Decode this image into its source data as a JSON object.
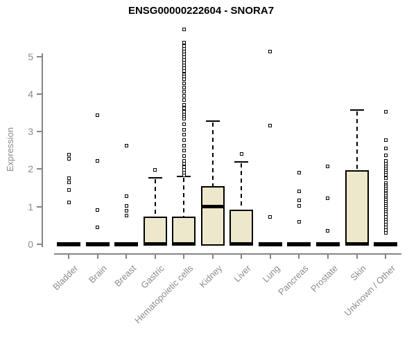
{
  "chart_data": {
    "type": "boxplot",
    "title": "ENSG00000222604 - SNORA7",
    "ylabel": "Expression",
    "xlabel": "",
    "ylim": [
      0,
      5.8
    ],
    "yticks": [
      0,
      1,
      2,
      3,
      4,
      5
    ],
    "grid": false,
    "legend": "none",
    "colors": {
      "box_fill": "#EDE8CB",
      "box_stroke": "#000000",
      "axis": "#848484",
      "tick_label": "#8C8C8C",
      "title": "#000000",
      "background": "#FFFFFF"
    },
    "categories": [
      "Bladder",
      "Brain",
      "Breast",
      "Gastric",
      "Hematopoietic cells",
      "Kidney",
      "Liver",
      "Lung",
      "Pancreas",
      "Prostate",
      "Skin",
      "Unknown / Other"
    ],
    "series": [
      {
        "category": "Bladder",
        "q1": 0,
        "median": 0,
        "q3": 0,
        "whisker_low": 0,
        "whisker_high": 0,
        "outliers": [
          2.38,
          2.28,
          1.76,
          1.65,
          1.45,
          1.12
        ]
      },
      {
        "category": "Brain",
        "q1": 0,
        "median": 0,
        "q3": 0,
        "whisker_low": 0,
        "whisker_high": 0,
        "outliers": [
          3.43,
          2.22,
          0.91,
          0.45
        ]
      },
      {
        "category": "Breast",
        "q1": 0,
        "median": 0,
        "q3": 0,
        "whisker_low": 0,
        "whisker_high": 0,
        "outliers": [
          2.62,
          1.28,
          1.03,
          0.89,
          0.76
        ]
      },
      {
        "category": "Gastric",
        "q1": 0,
        "median": 0,
        "q3": 0.73,
        "whisker_low": 0,
        "whisker_high": 1.76,
        "outliers": [
          1.98
        ]
      },
      {
        "category": "Hematopoietic cells",
        "q1": 0,
        "median": 0,
        "q3": 0.73,
        "whisker_low": 0,
        "whisker_high": 1.81,
        "outliers": [
          5.71,
          5.36,
          5.28,
          5.21,
          5.13,
          5.06,
          4.98,
          4.91,
          4.83,
          4.76,
          4.68,
          4.61,
          4.53,
          4.46,
          4.39,
          4.28,
          4.17,
          4.06,
          3.95,
          3.84,
          3.72,
          3.61,
          3.52,
          3.46,
          3.4,
          3.34,
          3.19,
          3.05,
          2.91,
          2.77,
          2.63,
          2.49,
          2.35,
          2.21,
          2.14,
          2.06,
          1.98,
          1.91,
          1.84
        ]
      },
      {
        "category": "Kidney",
        "q1": 0,
        "median": 1.0,
        "q3": 1.55,
        "whisker_low": 0,
        "whisker_high": 3.27,
        "outliers": []
      },
      {
        "category": "Liver",
        "q1": 0,
        "median": 0,
        "q3": 0.93,
        "whisker_low": 0,
        "whisker_high": 2.2,
        "outliers": [
          2.4
        ]
      },
      {
        "category": "Lung",
        "q1": 0,
        "median": 0,
        "q3": 0,
        "whisker_low": 0,
        "whisker_high": 0,
        "outliers": [
          5.12,
          3.15,
          0.72
        ]
      },
      {
        "category": "Pancreas",
        "q1": 0,
        "median": 0,
        "q3": 0,
        "whisker_low": 0,
        "whisker_high": 0,
        "outliers": [
          1.9,
          1.4,
          1.17,
          1.02,
          0.59
        ]
      },
      {
        "category": "Prostate",
        "q1": 0,
        "median": 0,
        "q3": 0,
        "whisker_low": 0,
        "whisker_high": 0,
        "outliers": [
          2.07,
          1.22,
          0.36
        ]
      },
      {
        "category": "Skin",
        "q1": 0,
        "median": 0,
        "q3": 1.97,
        "whisker_low": 0,
        "whisker_high": 3.58,
        "outliers": []
      },
      {
        "category": "Unknown / Other",
        "q1": 0,
        "median": 0,
        "q3": 0,
        "whisker_low": 0,
        "whisker_high": 0,
        "outliers": [
          3.52,
          2.77,
          2.55,
          2.36,
          2.22,
          2.14,
          2.08,
          2.02,
          1.96,
          1.9,
          1.85,
          1.76,
          1.63,
          1.58,
          1.53,
          1.48,
          1.43,
          1.38,
          1.33,
          1.28,
          1.23,
          1.18,
          1.13,
          1.08,
          1.02,
          0.97,
          0.91,
          0.86,
          0.8,
          0.73,
          0.66,
          0.59,
          0.52,
          0.45,
          0.38,
          0.31
        ]
      }
    ]
  }
}
